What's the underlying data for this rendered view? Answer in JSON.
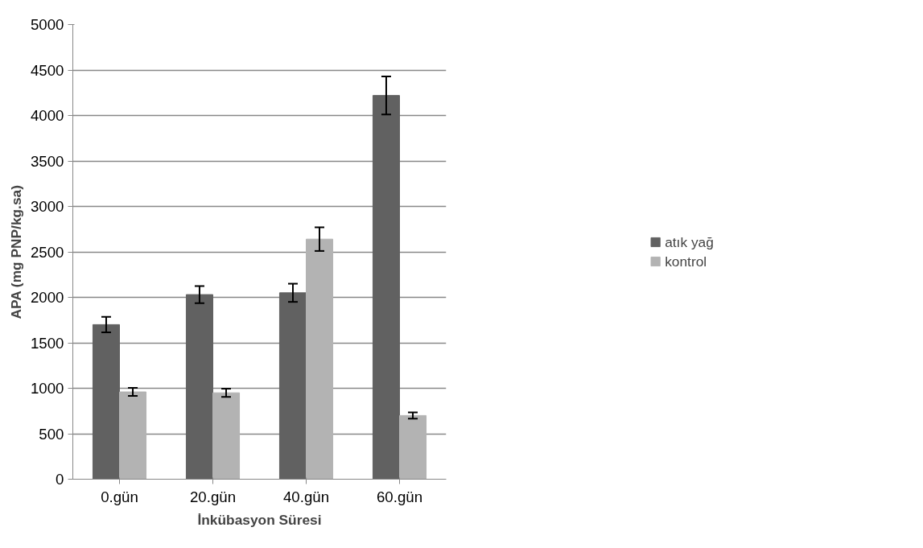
{
  "chart_data": {
    "type": "bar",
    "xlabel": "İnkübasyon Süresi",
    "ylabel": "APA (mg PNP/kg.sa)",
    "categories": [
      "0.gün",
      "20.gün",
      "40.gün",
      "60.gün"
    ],
    "series": [
      {
        "name": "atık yağ",
        "color": "#616161",
        "values": [
          1700,
          2030,
          2050,
          4220
        ],
        "errors": [
          85,
          95,
          100,
          210
        ]
      },
      {
        "name": "kontrol",
        "color": "#b3b3b3",
        "values": [
          960,
          950,
          2640,
          700
        ],
        "errors": [
          45,
          45,
          130,
          35
        ]
      }
    ],
    "ylim": [
      0,
      5000
    ],
    "yticks": [
      0,
      500,
      1000,
      1500,
      2000,
      2500,
      3000,
      3500,
      4000,
      4500,
      5000
    ],
    "grid": "y",
    "legend": "right"
  }
}
